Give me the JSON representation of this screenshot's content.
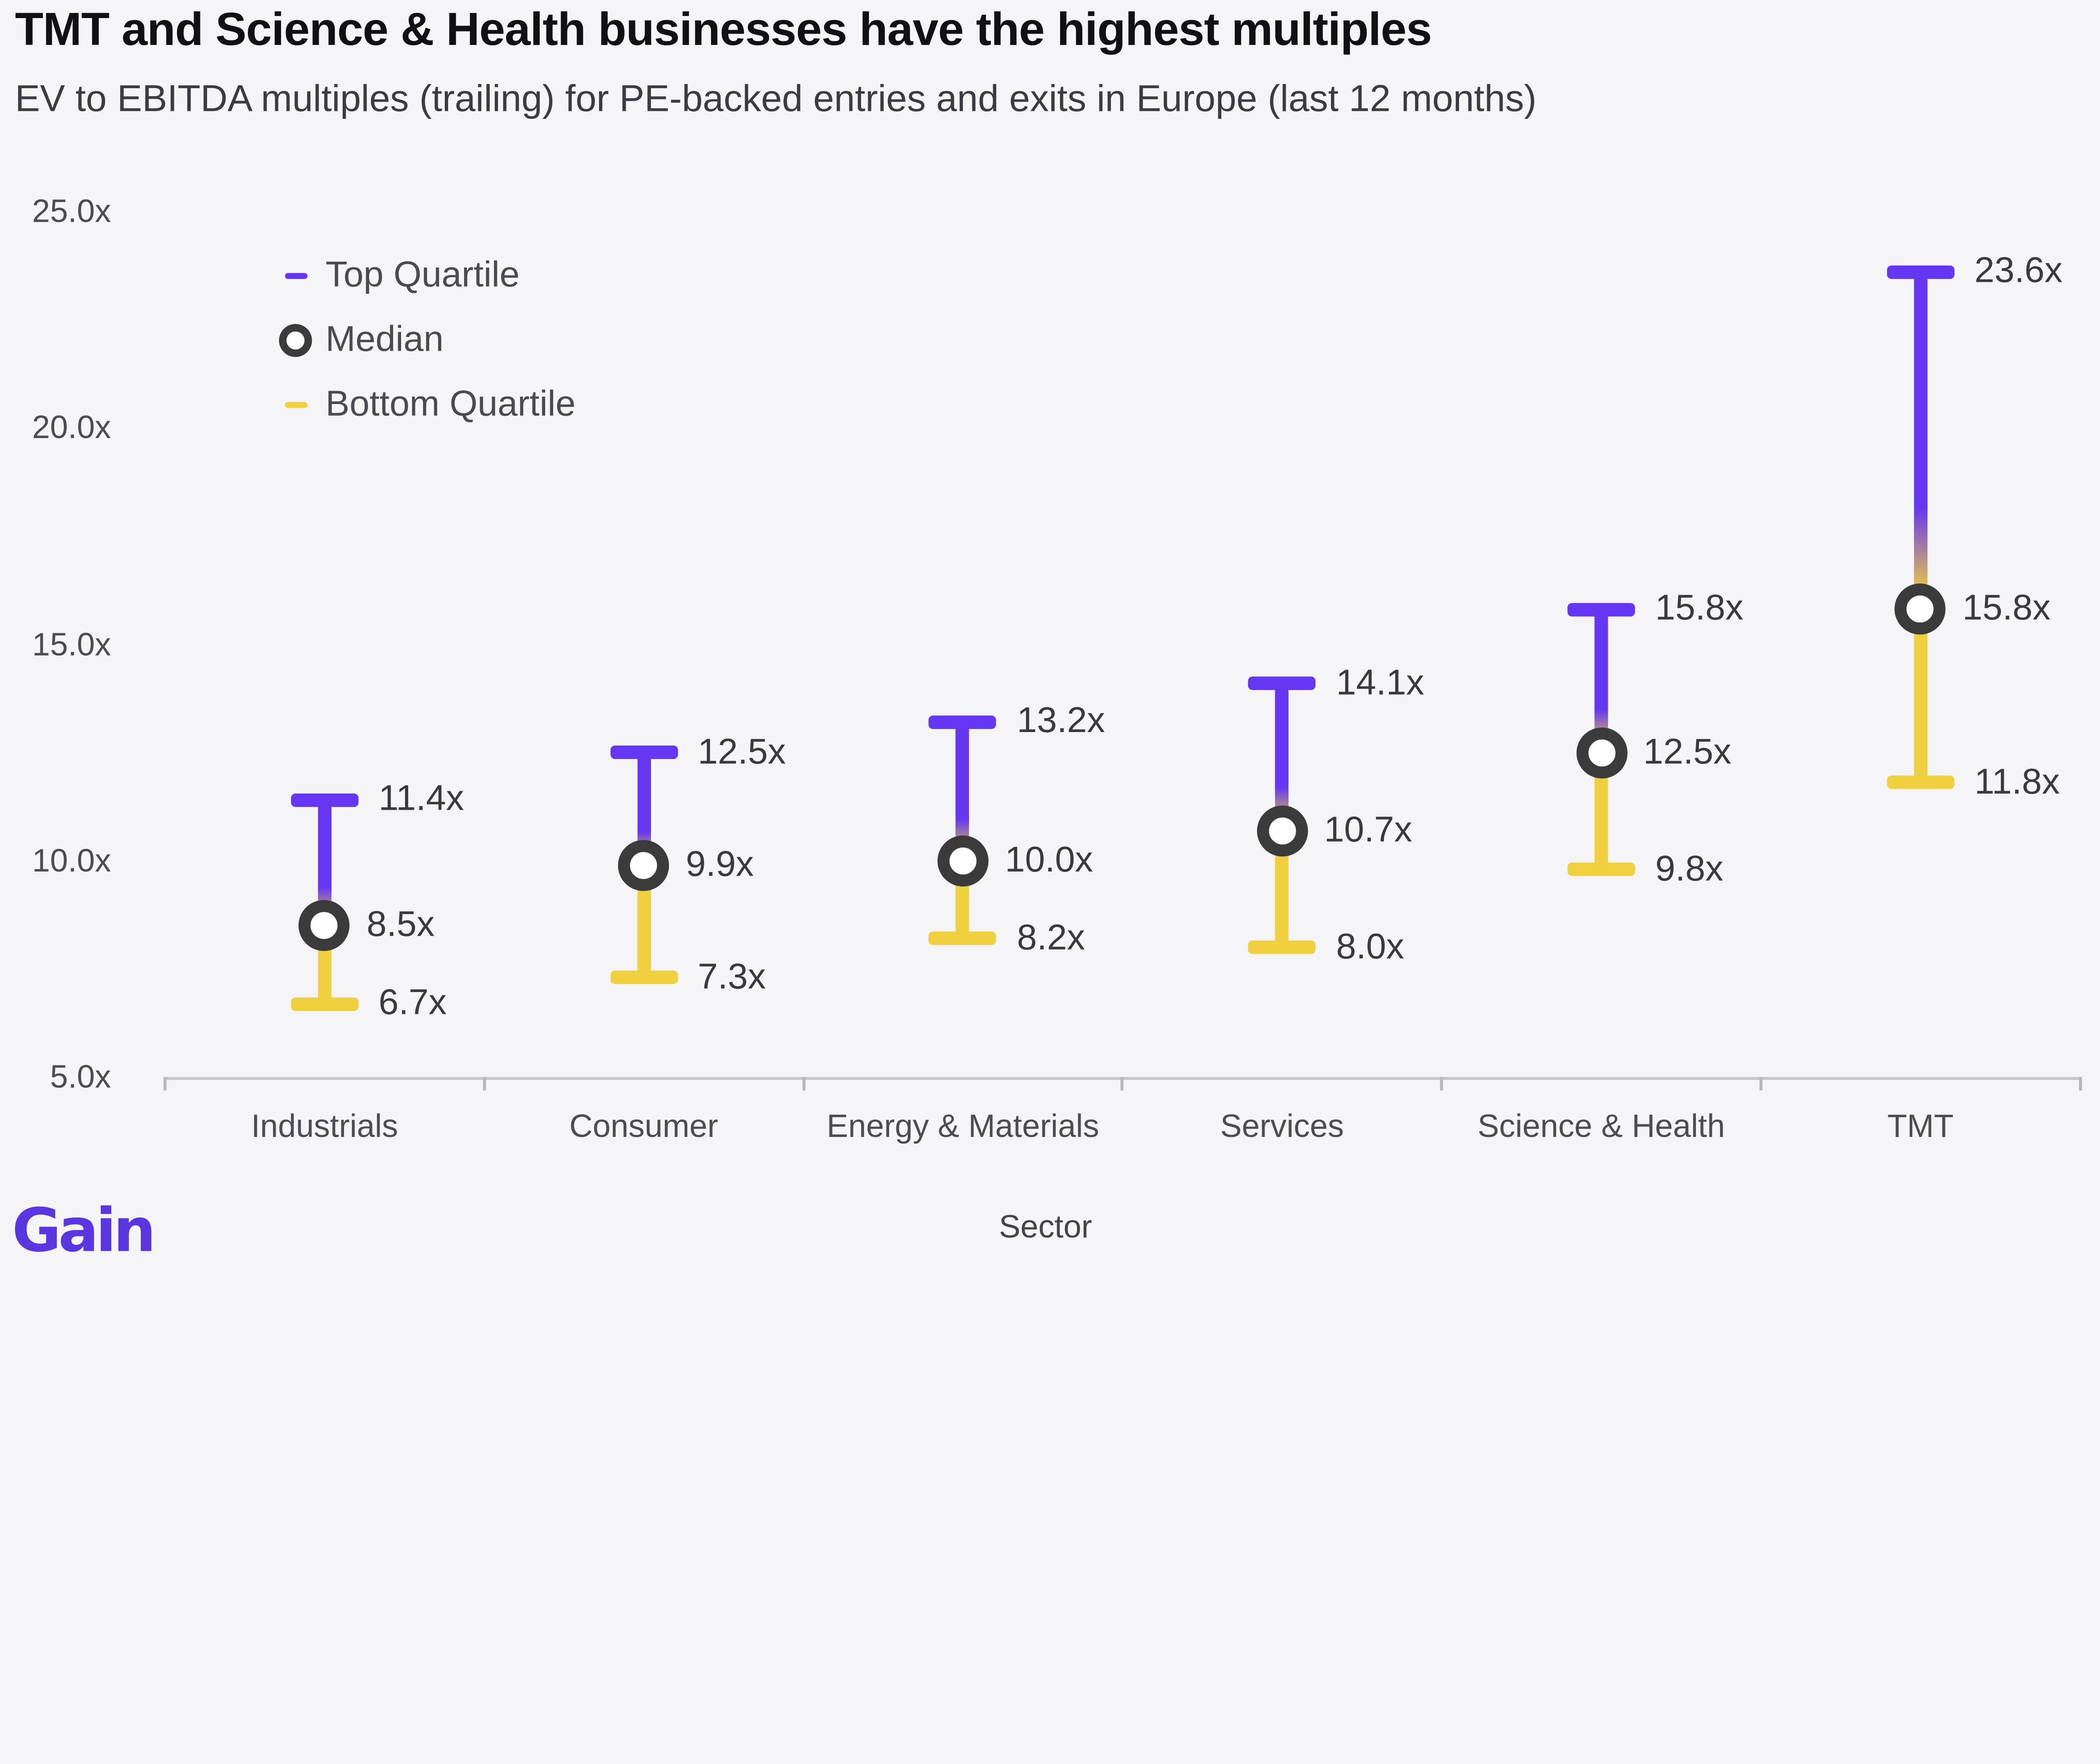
{
  "header": {
    "title": "TMT and Science & Health businesses have the highest multiples",
    "subtitle": "EV to EBITDA multiples (trailing) for PE-backed entries and exits in Europe (last 12 months)"
  },
  "legend": {
    "items": [
      {
        "label": "Top Quartile",
        "marker": "dash"
      },
      {
        "label": "Median",
        "marker": "ring"
      },
      {
        "label": "Bottom Quartile",
        "marker": "dash"
      }
    ]
  },
  "colors": {
    "background": "#f5f5f8",
    "top_quartile_purple": "#6637f2",
    "bottom_quartile_yellow": "#f0d03f",
    "median_ring": "#3b3b3b",
    "axis_line": "#c5c7c9",
    "axis_tick": "#b5b7b9",
    "title_text": "#111114",
    "subtitle_text": "#3b3b41",
    "value_label_text": "#3a3a3e",
    "muted_text": "#4c4c52",
    "logo_purple": "#5936e0"
  },
  "logo": {
    "text": "Gain"
  },
  "chart_data": {
    "type": "scatter",
    "subtype": "quartile-range-dumbbell",
    "title": "TMT and Science & Health businesses have the highest multiples",
    "subtitle": "EV to EBITDA multiples (trailing) for PE-backed entries and exits in Europe (last 12 months)",
    "xlabel": "Sector",
    "ylabel": "",
    "ylim": [
      5,
      25
    ],
    "grid": false,
    "legend_position": "top-left",
    "yticks": [
      {
        "value": 25,
        "label": "25.0x"
      },
      {
        "value": 20,
        "label": "20.0x"
      },
      {
        "value": 15,
        "label": "15.0x"
      },
      {
        "value": 10,
        "label": "10.0x"
      },
      {
        "value": 5,
        "label": "5.0x"
      }
    ],
    "categories": [
      "Industrials",
      "Consumer",
      "Energy & Materials",
      "Services",
      "Science & Health",
      "TMT"
    ],
    "series": [
      {
        "name": "Top Quartile",
        "values": [
          11.4,
          12.5,
          13.2,
          14.1,
          15.8,
          23.6
        ],
        "labels": [
          "11.4x",
          "12.5x",
          "13.2x",
          "14.1x",
          "15.8x",
          "23.6x"
        ]
      },
      {
        "name": "Median",
        "values": [
          8.5,
          9.9,
          10.0,
          10.7,
          12.5,
          15.8
        ],
        "labels": [
          "8.5x",
          "9.9x",
          "10.0x",
          "10.7x",
          "12.5x",
          "15.8x"
        ]
      },
      {
        "name": "Bottom Quartile",
        "values": [
          6.7,
          7.3,
          8.2,
          8.0,
          9.8,
          11.8
        ],
        "labels": [
          "6.7x",
          "7.3x",
          "8.2x",
          "8.0x",
          "9.8x",
          "11.8x"
        ]
      }
    ]
  }
}
